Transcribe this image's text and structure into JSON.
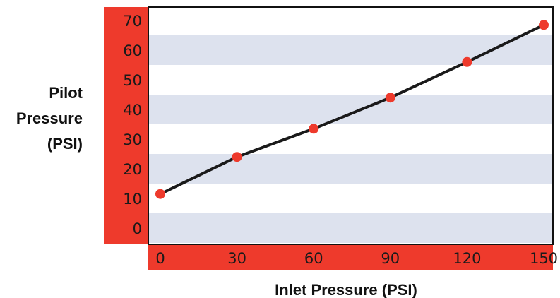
{
  "chart_data": {
    "type": "line",
    "xlabel": "Inlet Pressure (PSI)",
    "ylabel": [
      "Pilot",
      "Pressure",
      "(PSI)"
    ],
    "x_ticks": [
      "0",
      "30",
      "60",
      "90",
      "120",
      "150"
    ],
    "y_ticks": [
      "0",
      "10",
      "20",
      "30",
      "40",
      "50",
      "60",
      "70"
    ],
    "xlim": [
      0,
      150
    ],
    "ylim": [
      0,
      70
    ],
    "series": [
      {
        "x": [
          0,
          30,
          60,
          90,
          120,
          150
        ],
        "y": [
          11.5,
          24,
          33.5,
          44,
          56,
          68.5
        ]
      }
    ],
    "colors": {
      "axis_band": "#ee3a2c",
      "grid_band": "#dde2ee",
      "line": "#1a1a1a",
      "marker": "#ee3a2c"
    }
  }
}
